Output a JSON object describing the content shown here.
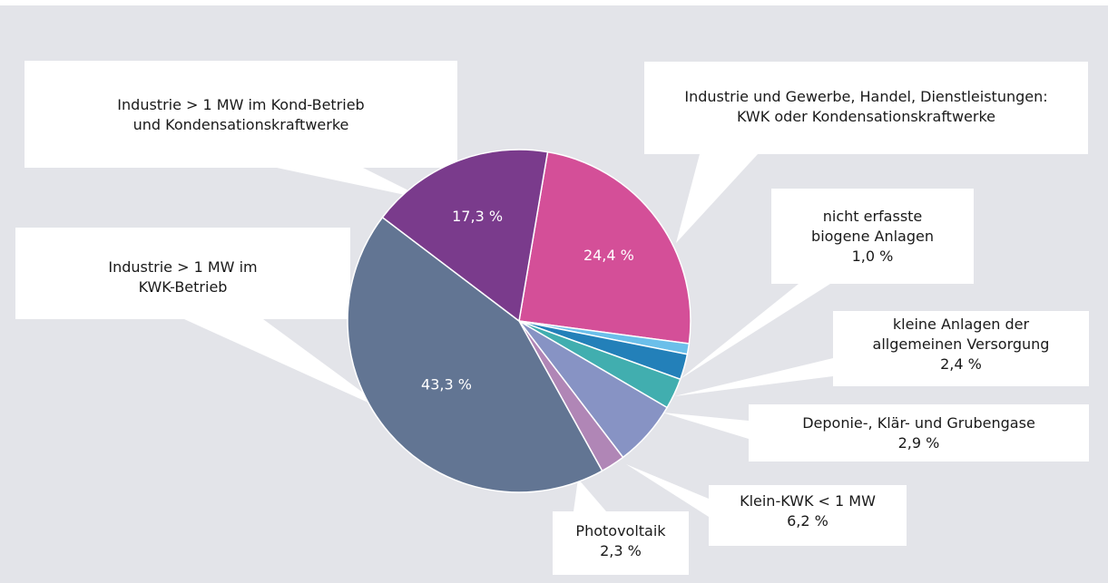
{
  "chart_data": {
    "type": "pie",
    "title": "",
    "slices": [
      {
        "label_lines": [
          "Industrie und Gewerbe, Handel, Dienstleistungen:",
          "KWK oder Kondensationskraftwerke"
        ],
        "value": 24.4,
        "value_text": "24,4 %",
        "color": "#d44f98",
        "inside_label": true
      },
      {
        "label_lines": [
          "nicht erfasste",
          "biogene Anlagen"
        ],
        "value": 1.0,
        "value_text": "1,0 %",
        "color": "#6bbfea",
        "inside_label": false
      },
      {
        "label_lines": [
          "kleine Anlagen der",
          "allgemeinen Versorgung"
        ],
        "value": 2.4,
        "value_text": "2,4 %",
        "color": "#2380b9",
        "inside_label": false
      },
      {
        "label_lines": [
          "Deponie-, Klär- und Grubengase"
        ],
        "value": 2.9,
        "value_text": "2,9 %",
        "color": "#41aeaf",
        "inside_label": false
      },
      {
        "label_lines": [
          "Klein-KWK < 1 MW"
        ],
        "value": 6.2,
        "value_text": "6,2 %",
        "color": "#8793c4",
        "inside_label": false
      },
      {
        "label_lines": [
          "Photovoltaik"
        ],
        "value": 2.3,
        "value_text": "2,3 %",
        "color": "#b086b6",
        "inside_label": false
      },
      {
        "label_lines": [
          "Industrie > 1 MW im",
          "KWK-Betrieb"
        ],
        "value": 43.3,
        "value_text": "43,3 %",
        "color": "#627593",
        "inside_label": true
      },
      {
        "label_lines": [
          "Industrie > 1 MW im Kond-Betrieb",
          "und Kondensationskraftwerke"
        ],
        "value": 17.3,
        "value_text": "17,3 %",
        "color": "#7a3b8c",
        "inside_label": true
      }
    ]
  }
}
